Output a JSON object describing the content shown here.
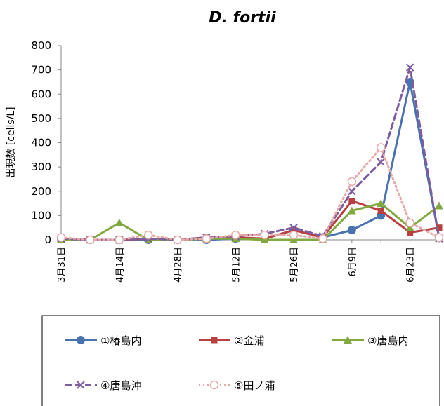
{
  "chart_data": {
    "type": "line",
    "title": "D. fortii",
    "ylabel": "出現数 [cells/L]",
    "xlabel": "",
    "ylim": [
      0,
      800
    ],
    "yticks": [
      0,
      100,
      200,
      300,
      400,
      500,
      600,
      700,
      800
    ],
    "x_tick_labels": [
      "3月31日",
      "4月14日",
      "4月28日",
      "5月12日",
      "5月26日",
      "6月9日",
      "6月23日"
    ],
    "grid": false,
    "legend_position": "bottom",
    "x": [
      "3月31日",
      "4月7日",
      "4月14日",
      "4月21日",
      "4月28日",
      "5月5日",
      "5月12日",
      "5月19日",
      "5月26日",
      "6月2日",
      "6月9日",
      "6月16日",
      "6月23日",
      "6月30日"
    ],
    "series": [
      {
        "name": "①椿島内",
        "color": "#4A72B0",
        "marker": "circle-filled",
        "dash": "solid",
        "values": [
          5,
          0,
          0,
          0,
          0,
          0,
          5,
          5,
          40,
          10,
          40,
          100,
          650,
          10
        ]
      },
      {
        "name": "②金浦",
        "color": "#B84040",
        "marker": "square",
        "dash": "solid",
        "values": [
          5,
          0,
          0,
          5,
          0,
          10,
          10,
          5,
          40,
          10,
          160,
          120,
          30,
          50
        ]
      },
      {
        "name": "③唐島内",
        "color": "#82A940",
        "marker": "triangle",
        "dash": "solid",
        "values": [
          0,
          0,
          70,
          0,
          0,
          5,
          5,
          0,
          0,
          0,
          120,
          150,
          50,
          140
        ]
      },
      {
        "name": "④唐島沖",
        "color": "#7D5DA0",
        "marker": "x",
        "dash": "dashed",
        "values": [
          5,
          0,
          0,
          5,
          0,
          10,
          15,
          25,
          50,
          15,
          200,
          320,
          710,
          5
        ]
      },
      {
        "name": "⑤田ノ浦",
        "color": "#E8A8A8",
        "marker": "circle-open",
        "dash": "dotted",
        "values": [
          10,
          0,
          0,
          20,
          0,
          5,
          20,
          20,
          20,
          5,
          240,
          380,
          70,
          10
        ]
      }
    ]
  }
}
